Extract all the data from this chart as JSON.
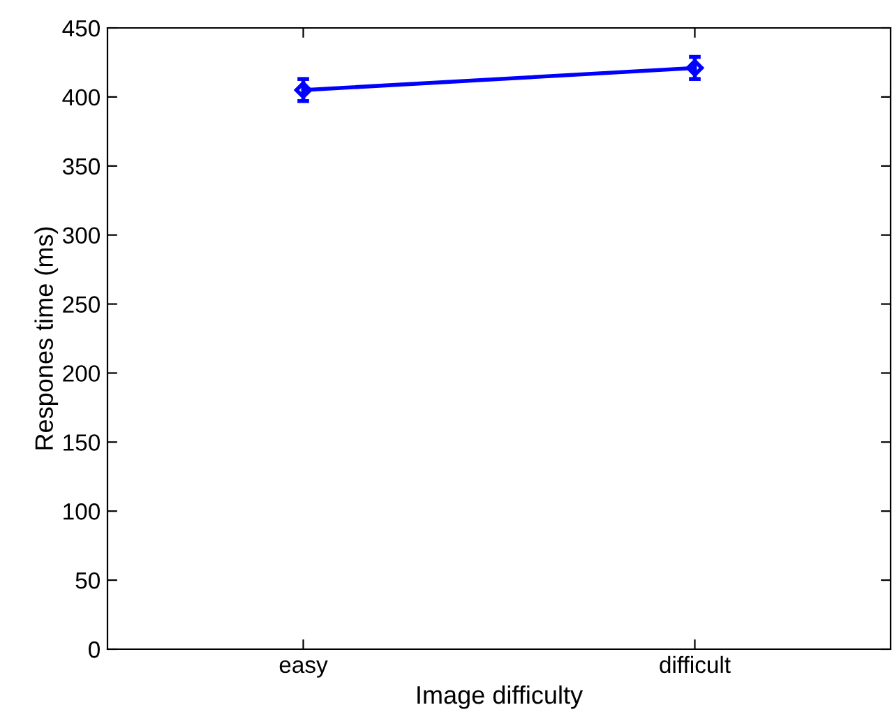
{
  "chart_data": {
    "type": "line",
    "xlabel": "Image difficulty",
    "ylabel": "Respones time (ms)",
    "categories": [
      "easy",
      "difficult"
    ],
    "series": [
      {
        "color": "#0000ff",
        "values": [
          405,
          421
        ],
        "errors": [
          8,
          8
        ]
      }
    ],
    "ylim": [
      0,
      450
    ],
    "yticks": [
      0,
      50,
      100,
      150,
      200,
      250,
      300,
      350,
      400,
      450
    ],
    "grid": false,
    "legend": false,
    "marker": "diamond",
    "line_style": "solid"
  }
}
